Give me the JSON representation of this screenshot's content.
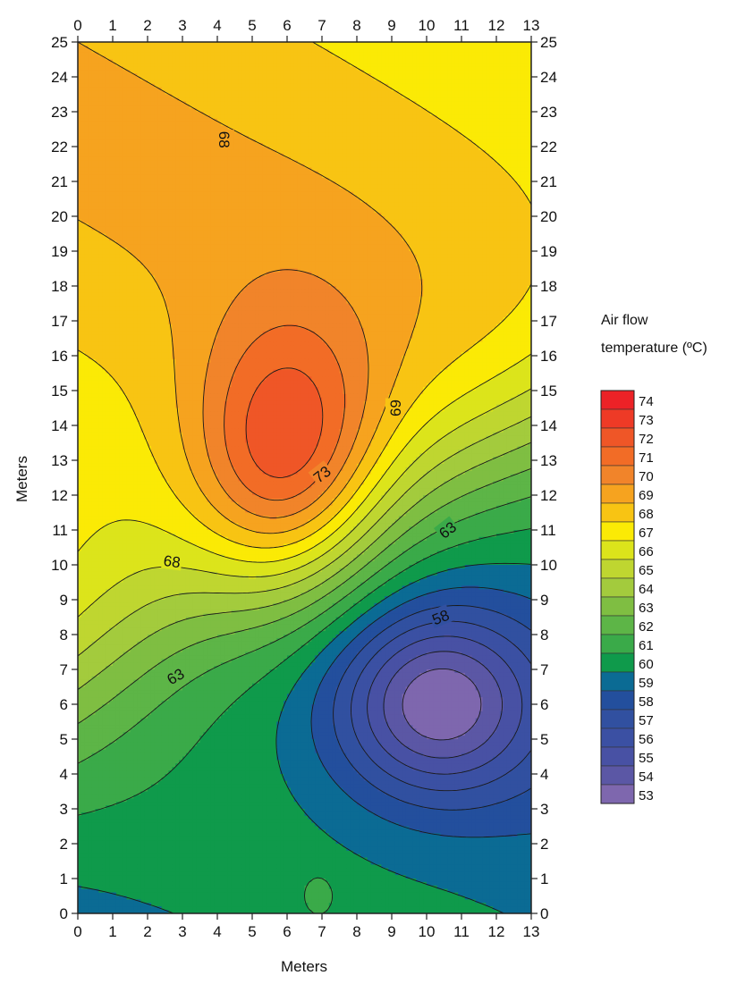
{
  "chart_data": {
    "type": "heatmap",
    "subtype": "filled-contour",
    "title": "",
    "xlabel": "Meters",
    "ylabel": "Meters",
    "xlim": [
      0,
      13
    ],
    "ylim": [
      0,
      25
    ],
    "x_ticks": [
      0,
      1,
      2,
      3,
      4,
      5,
      6,
      7,
      8,
      9,
      10,
      11,
      12,
      13
    ],
    "y_ticks": [
      0,
      1,
      2,
      3,
      4,
      5,
      6,
      7,
      8,
      9,
      10,
      11,
      12,
      13,
      14,
      15,
      16,
      17,
      18,
      19,
      20,
      21,
      22,
      23,
      24,
      25
    ],
    "ticks_on_all_sides": true,
    "grid": false,
    "colorbar": {
      "title_line1": "Air flow",
      "title_line2": "temperature (ºC)",
      "levels": [
        74,
        73,
        72,
        71,
        70,
        69,
        68,
        67,
        66,
        65,
        64,
        63,
        62,
        61,
        60,
        59,
        58,
        57,
        56,
        55,
        54,
        53
      ],
      "colors": [
        "#ec2227",
        "#ee3a26",
        "#ef5627",
        "#f26c26",
        "#f1842a",
        "#f6a31f",
        "#f8c413",
        "#fbea05",
        "#dce41b",
        "#bfd630",
        "#a3cb3d",
        "#7fbe42",
        "#5db547",
        "#3aaa49",
        "#0f9a4b",
        "#0b6b94",
        "#234f9d",
        "#3150a0",
        "#3b50a3",
        "#4851a4",
        "#5b57a5",
        "#7e67ae"
      ],
      "position": "right"
    },
    "contour_labels": [
      {
        "text": "68",
        "x": 4.2,
        "y": 22.2,
        "rotation": 90
      },
      {
        "text": "68",
        "x": 2.7,
        "y": 10.1,
        "rotation": 8
      },
      {
        "text": "69",
        "x": 9.1,
        "y": 14.5,
        "rotation": -90
      },
      {
        "text": "73",
        "x": 7.0,
        "y": 12.6,
        "rotation": -38
      },
      {
        "text": "63",
        "x": 10.6,
        "y": 11.0,
        "rotation": -38
      },
      {
        "text": "63",
        "x": 2.8,
        "y": 6.8,
        "rotation": -30
      },
      {
        "text": "58",
        "x": 10.4,
        "y": 8.5,
        "rotation": -22
      }
    ],
    "hotspots": [
      {
        "x": 6.0,
        "y": 12.8,
        "max": 74,
        "spread_x": 2.7,
        "spread_y": 4.0
      },
      {
        "x": 10.3,
        "y": 6.0,
        "min": 53,
        "spread_x": 2.8,
        "spread_y": 2.6
      }
    ],
    "local_features": [
      {
        "x": 6.9,
        "y": 0.5,
        "value": 63
      }
    ]
  }
}
